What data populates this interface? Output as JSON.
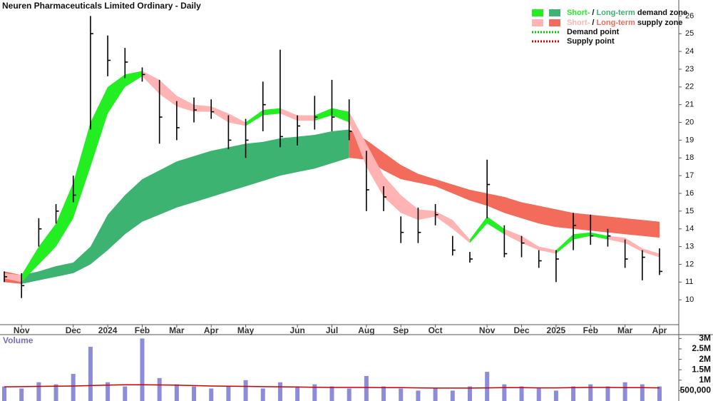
{
  "chart_data": {
    "type": "ohlc",
    "title": "Neuren Pharmaceuticals Limited Ordinary - Daily",
    "categories": [
      null,
      "Nov",
      null,
      null,
      "Dec",
      null,
      "2024",
      null,
      "Feb",
      null,
      "Mar",
      null,
      "Apr",
      null,
      "May",
      null,
      null,
      "Jun",
      null,
      "Jul",
      null,
      "Aug",
      null,
      "Sep",
      null,
      "Oct",
      null,
      null,
      "Nov",
      null,
      "Dec",
      null,
      "2025",
      null,
      "Feb",
      null,
      "Mar",
      null,
      "Apr"
    ],
    "color": "#000000",
    "close": [
      11.3,
      10.8,
      14.0,
      15.0,
      15.9,
      25.0,
      23.5,
      23.4,
      22.7,
      20.3,
      19.7,
      20.7,
      20.6,
      19.0,
      19.0,
      21.0,
      19.2,
      19.8,
      20.3,
      20.3,
      19.5,
      16.2,
      15.8,
      13.8,
      13.8,
      14.8,
      12.8,
      12.3,
      16.5,
      12.6,
      13.2,
      12.2,
      12.3,
      14.2,
      13.6,
      13.6,
      12.3,
      12.4,
      11.6
    ],
    "high": [
      11.6,
      11.5,
      14.6,
      15.4,
      17.0,
      26.0,
      24.9,
      24.2,
      23.1,
      22.4,
      21.2,
      21.4,
      21.3,
      20.4,
      20.2,
      22.3,
      24.1,
      20.4,
      21.5,
      22.4,
      21.3,
      18.4,
      16.4,
      14.7,
      15.2,
      15.4,
      13.6,
      12.7,
      17.9,
      14.2,
      13.6,
      12.8,
      12.8,
      14.9,
      14.8,
      14.0,
      13.4,
      12.8,
      12.9
    ],
    "low": [
      11.0,
      10.1,
      13.0,
      14.3,
      15.5,
      19.6,
      22.6,
      22.5,
      22.3,
      18.8,
      19.0,
      20.0,
      20.2,
      18.5,
      18.0,
      19.5,
      18.6,
      18.7,
      19.6,
      19.5,
      19.0,
      15.0,
      15.0,
      13.2,
      13.2,
      14.2,
      12.5,
      12.1,
      14.6,
      12.4,
      12.4,
      11.8,
      11.0,
      12.8,
      13.1,
      13.0,
      11.8,
      11.1,
      11.4
    ],
    "ylim": [
      8.6,
      26.9
    ],
    "yticks": [
      10,
      11,
      12,
      13,
      14,
      15,
      16,
      17,
      18,
      19,
      20,
      21,
      22,
      23,
      24,
      25,
      26
    ],
    "zones": [
      {
        "color": "#3cb371",
        "lower": [
          null,
          10.9,
          11.1,
          11.3,
          11.5,
          12.0,
          12.8,
          13.7,
          14.4,
          14.8,
          15.2,
          15.5,
          15.8,
          16.1,
          16.4,
          16.7,
          17.0,
          17.2,
          17.4,
          17.7,
          18.0,
          null,
          null,
          null,
          null,
          null,
          null,
          null,
          null,
          null,
          null,
          null,
          null,
          null,
          null,
          null,
          null,
          null,
          null
        ],
        "upper": [
          null,
          11.4,
          11.6,
          11.9,
          12.1,
          13.0,
          14.8,
          15.9,
          16.8,
          17.3,
          17.8,
          18.1,
          18.4,
          18.6,
          18.8,
          18.9,
          19.1,
          19.2,
          19.3,
          19.5,
          19.6,
          null,
          null,
          null,
          null,
          null,
          null,
          null,
          null,
          null,
          null,
          null,
          null,
          null,
          null,
          null,
          null,
          null,
          null
        ]
      },
      {
        "color": "#f26b5b",
        "lower": [
          11.0,
          10.9,
          null,
          null,
          null,
          null,
          null,
          null,
          null,
          null,
          null,
          null,
          null,
          null,
          null,
          null,
          null,
          null,
          null,
          null,
          18.0,
          17.9,
          17.3,
          16.8,
          16.6,
          16.4,
          16.0,
          15.6,
          15.3,
          14.9,
          14.6,
          14.3,
          14.1,
          14.0,
          13.9,
          13.8,
          13.7,
          13.6,
          13.5
        ],
        "upper": [
          11.6,
          11.4,
          null,
          null,
          null,
          null,
          null,
          null,
          null,
          null,
          null,
          null,
          null,
          null,
          null,
          null,
          null,
          null,
          null,
          null,
          19.6,
          19.0,
          18.3,
          17.6,
          17.1,
          16.8,
          16.5,
          16.2,
          16.0,
          15.8,
          15.5,
          15.3,
          15.1,
          14.9,
          14.8,
          14.7,
          14.6,
          14.5,
          14.4
        ]
      },
      {
        "color": "#22ee22",
        "lower": [
          null,
          11.0,
          12.0,
          13.0,
          14.6,
          17.5,
          20.5,
          22.0,
          22.6,
          null,
          null,
          null,
          null,
          null,
          19.8,
          20.4,
          20.5,
          null,
          20.1,
          20.4,
          20.0,
          null,
          null,
          null,
          null,
          null,
          null,
          13.2,
          14.3,
          13.7,
          null,
          null,
          12.6,
          13.4,
          13.6,
          13.4,
          null,
          null,
          null
        ],
        "upper": [
          null,
          11.4,
          13.0,
          14.3,
          16.6,
          20.0,
          22.0,
          22.7,
          22.9,
          null,
          null,
          null,
          null,
          null,
          20.0,
          20.7,
          20.8,
          null,
          20.4,
          20.8,
          20.6,
          null,
          null,
          null,
          null,
          null,
          null,
          13.4,
          14.7,
          14.0,
          null,
          null,
          12.8,
          13.7,
          13.8,
          13.6,
          null,
          null,
          null
        ]
      },
      {
        "color": "#ffb3b3",
        "lower": [
          11.2,
          11.0,
          null,
          null,
          null,
          null,
          null,
          null,
          22.6,
          21.6,
          20.9,
          20.6,
          20.6,
          20.0,
          19.8,
          null,
          20.5,
          20.1,
          20.1,
          null,
          20.0,
          17.5,
          15.8,
          14.9,
          14.5,
          14.7,
          14.0,
          13.2,
          null,
          13.7,
          13.2,
          12.8,
          12.6,
          null,
          null,
          13.4,
          13.2,
          12.7,
          12.4
        ],
        "upper": [
          11.5,
          11.4,
          null,
          null,
          null,
          null,
          null,
          null,
          22.9,
          22.4,
          21.5,
          21.0,
          20.9,
          20.5,
          20.0,
          null,
          20.8,
          20.4,
          20.4,
          null,
          20.6,
          18.8,
          17.0,
          15.9,
          15.1,
          15.0,
          14.5,
          13.4,
          null,
          14.0,
          13.6,
          13.0,
          12.8,
          null,
          null,
          13.6,
          13.5,
          12.9,
          12.6
        ]
      }
    ],
    "legend": {
      "demand_zone": {
        "short": "Short-",
        "slash": "/",
        "long": "Long-term",
        "label": "demand zone"
      },
      "supply_zone": {
        "short": "Short-",
        "slash": "/",
        "long": "Long-term",
        "label": "supply zone"
      },
      "demand_point": {
        "label": "Demand point",
        "color": "#00cc00"
      },
      "supply_point": {
        "label": "Supply point",
        "color": "#cc0000"
      }
    },
    "volume": {
      "title": "Volume",
      "color": "#8c8cd8",
      "average_color": "#cc0000",
      "values": [
        700000,
        600000,
        900000,
        800000,
        1300000,
        2600000,
        900000,
        700000,
        3000000,
        1100000,
        800000,
        700000,
        600000,
        700000,
        1000000,
        600000,
        900000,
        700000,
        800000,
        700000,
        600000,
        1200000,
        700000,
        600000,
        500000,
        600000,
        500000,
        700000,
        1400000,
        800000,
        700000,
        600000,
        500000,
        700000,
        800000,
        700000,
        900000,
        800000,
        700000
      ],
      "average": [
        680000,
        690000,
        700000,
        710000,
        720000,
        740000,
        760000,
        780000,
        780000,
        770000,
        760000,
        740000,
        720000,
        710000,
        700000,
        690000,
        680000,
        670000,
        660000,
        650000,
        650000,
        650000,
        640000,
        640000,
        630000,
        620000,
        620000,
        620000,
        630000,
        640000,
        640000,
        630000,
        630000,
        640000,
        650000,
        650000,
        640000,
        640000,
        630000
      ],
      "ylim": [
        0,
        3150000
      ],
      "yticks": [
        {
          "value": 3000000,
          "label": "3M"
        },
        {
          "value": 2500000,
          "label": "2.5M"
        },
        {
          "value": 2000000,
          "label": "2M"
        },
        {
          "value": 1500000,
          "label": "1.5M"
        },
        {
          "value": 1000000,
          "label": "1M"
        },
        {
          "value": 500000,
          "label": "500,000"
        }
      ]
    }
  }
}
